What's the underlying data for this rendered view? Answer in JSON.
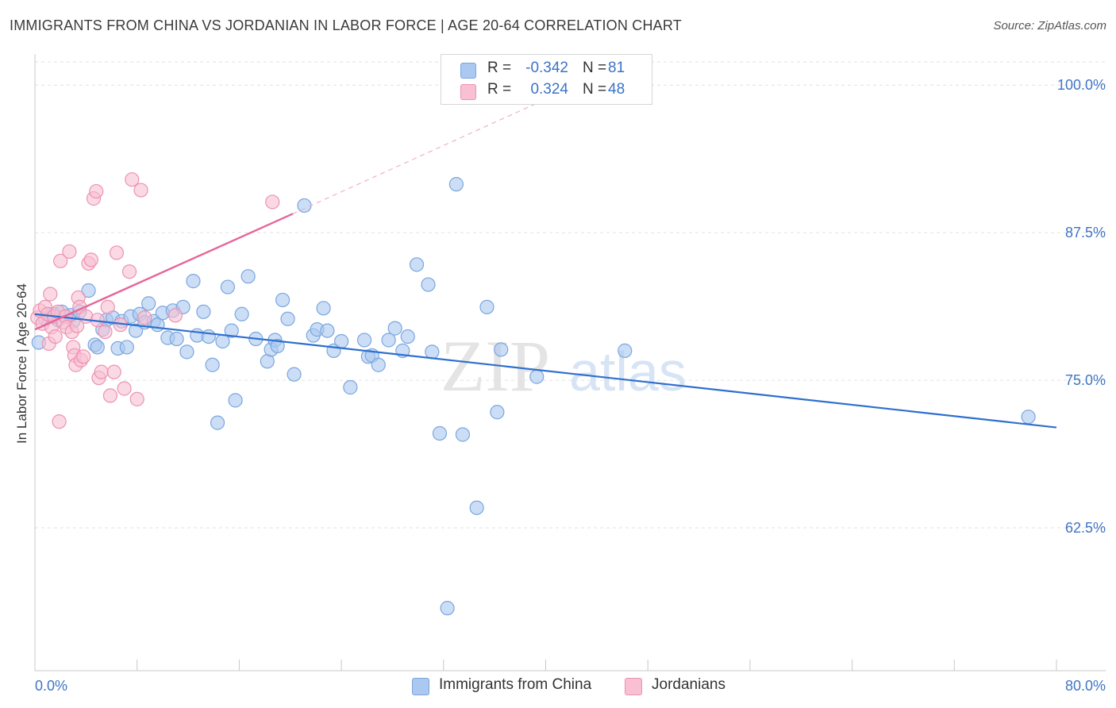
{
  "title": "IMMIGRANTS FROM CHINA VS JORDANIAN IN LABOR FORCE | AGE 20-64 CORRELATION CHART",
  "source": "Source: ZipAtlas.com",
  "watermark": {
    "zip": "ZIP",
    "atlas": "atlas"
  },
  "legend": {
    "rows": [
      {
        "r_label": "R =",
        "r_value": "-0.342",
        "n_label": "N =",
        "n_value": "81",
        "color": "#aac8f0",
        "border": "#7aa6de"
      },
      {
        "r_label": "R =",
        "r_value": "0.324",
        "n_label": "N =",
        "n_value": "48",
        "color": "#f8c0d2",
        "border": "#ec92b0"
      }
    ]
  },
  "bottom_legend": [
    {
      "label": "Immigrants from China",
      "color": "#aac8f0",
      "border": "#7aa6de"
    },
    {
      "label": "Jordanians",
      "color": "#f8c0d2",
      "border": "#ec92b0"
    }
  ],
  "chart_data": {
    "type": "scatter",
    "title": "IMMIGRANTS FROM CHINA VS JORDANIAN IN LABOR FORCE | AGE 20-64 CORRELATION CHART",
    "xlabel": "",
    "ylabel": "In Labor Force | Age 20-64",
    "xlim": [
      0,
      80
    ],
    "ylim": [
      50.4,
      102.5
    ],
    "x_tick_labels": [
      "0.0%",
      "80.0%"
    ],
    "y_ticks": [
      62.5,
      75.0,
      87.5,
      100.0
    ],
    "y_tick_labels": [
      "62.5%",
      "75.0%",
      "87.5%",
      "100.0%"
    ],
    "grid": true,
    "legend_position": "top-center",
    "series": [
      {
        "name": "Immigrants from China",
        "color": "#7aa6de",
        "fill": "#aac8f0",
        "trend": {
          "x": [
            0,
            80
          ],
          "y": [
            80.6,
            71.0
          ],
          "color": "#2f6fcf",
          "dashed_extension": false
        },
        "points": [
          [
            0.3,
            78.2
          ],
          [
            0.8,
            80.2
          ],
          [
            1.2,
            80.5
          ],
          [
            1.5,
            80.6
          ],
          [
            1.8,
            80.1
          ],
          [
            2.1,
            80.8
          ],
          [
            2.8,
            80.5
          ],
          [
            3.0,
            80.0
          ],
          [
            3.5,
            80.8
          ],
          [
            4.2,
            82.6
          ],
          [
            4.7,
            78.0
          ],
          [
            4.9,
            77.8
          ],
          [
            5.3,
            79.3
          ],
          [
            5.6,
            80.1
          ],
          [
            6.1,
            80.3
          ],
          [
            6.5,
            77.7
          ],
          [
            6.8,
            80.0
          ],
          [
            7.2,
            77.8
          ],
          [
            7.5,
            80.4
          ],
          [
            7.9,
            79.2
          ],
          [
            8.2,
            80.6
          ],
          [
            8.6,
            79.9
          ],
          [
            8.9,
            81.5
          ],
          [
            9.3,
            80.0
          ],
          [
            9.6,
            79.7
          ],
          [
            10.0,
            80.7
          ],
          [
            10.4,
            78.6
          ],
          [
            10.8,
            80.9
          ],
          [
            11.1,
            78.5
          ],
          [
            11.6,
            81.2
          ],
          [
            11.9,
            77.4
          ],
          [
            12.4,
            83.4
          ],
          [
            12.7,
            78.8
          ],
          [
            13.2,
            80.8
          ],
          [
            13.6,
            78.7
          ],
          [
            13.9,
            76.3
          ],
          [
            14.7,
            78.3
          ],
          [
            15.1,
            82.9
          ],
          [
            15.4,
            79.2
          ],
          [
            15.7,
            73.3
          ],
          [
            16.2,
            80.6
          ],
          [
            16.7,
            83.8
          ],
          [
            17.3,
            78.5
          ],
          [
            18.2,
            76.6
          ],
          [
            18.5,
            77.6
          ],
          [
            18.8,
            78.4
          ],
          [
            19.0,
            77.9
          ],
          [
            19.4,
            81.8
          ],
          [
            19.8,
            80.2
          ],
          [
            20.3,
            75.5
          ],
          [
            21.1,
            89.8
          ],
          [
            21.8,
            78.8
          ],
          [
            22.1,
            79.3
          ],
          [
            22.6,
            81.1
          ],
          [
            22.9,
            79.2
          ],
          [
            23.4,
            77.5
          ],
          [
            24.0,
            78.3
          ],
          [
            24.7,
            74.4
          ],
          [
            25.8,
            78.4
          ],
          [
            26.1,
            77.0
          ],
          [
            26.4,
            77.1
          ],
          [
            26.9,
            76.3
          ],
          [
            27.7,
            78.4
          ],
          [
            28.2,
            79.4
          ],
          [
            28.8,
            77.5
          ],
          [
            29.2,
            78.7
          ],
          [
            29.9,
            84.8
          ],
          [
            30.8,
            83.1
          ],
          [
            31.1,
            77.4
          ],
          [
            31.7,
            70.5
          ],
          [
            32.3,
            55.7
          ],
          [
            33.0,
            91.6
          ],
          [
            33.5,
            70.4
          ],
          [
            34.6,
            64.2
          ],
          [
            35.4,
            81.2
          ],
          [
            36.2,
            72.3
          ],
          [
            36.5,
            77.6
          ],
          [
            39.3,
            75.3
          ],
          [
            46.2,
            77.5
          ],
          [
            77.8,
            71.9
          ],
          [
            14.3,
            71.4
          ]
        ]
      },
      {
        "name": "Jordanians",
        "color": "#ec92b0",
        "fill": "#f8c0d2",
        "trend": {
          "x": [
            0,
            20.2
          ],
          "y": [
            79.3,
            89.1
          ],
          "color": "#e6669a",
          "dashed_to": [
            40,
            98.8
          ]
        },
        "points": [
          [
            0.2,
            80.3
          ],
          [
            0.4,
            80.9
          ],
          [
            0.6,
            79.8
          ],
          [
            0.8,
            81.2
          ],
          [
            1.0,
            80.6
          ],
          [
            1.1,
            78.1
          ],
          [
            1.2,
            82.3
          ],
          [
            1.3,
            79.5
          ],
          [
            1.5,
            80.4
          ],
          [
            1.6,
            78.7
          ],
          [
            1.8,
            80.8
          ],
          [
            1.9,
            71.5
          ],
          [
            2.0,
            85.1
          ],
          [
            2.2,
            79.9
          ],
          [
            2.4,
            80.4
          ],
          [
            2.5,
            79.5
          ],
          [
            2.7,
            85.9
          ],
          [
            2.9,
            79.1
          ],
          [
            3.0,
            77.8
          ],
          [
            3.1,
            77.1
          ],
          [
            3.2,
            76.3
          ],
          [
            3.3,
            79.6
          ],
          [
            3.4,
            82.0
          ],
          [
            3.5,
            81.2
          ],
          [
            3.6,
            76.7
          ],
          [
            3.8,
            77.0
          ],
          [
            4.0,
            80.4
          ],
          [
            4.2,
            84.9
          ],
          [
            4.4,
            85.2
          ],
          [
            4.6,
            90.4
          ],
          [
            4.8,
            91.0
          ],
          [
            4.9,
            80.1
          ],
          [
            5.0,
            75.2
          ],
          [
            5.2,
            75.7
          ],
          [
            5.5,
            79.1
          ],
          [
            5.7,
            81.2
          ],
          [
            5.9,
            73.7
          ],
          [
            6.2,
            75.7
          ],
          [
            6.4,
            85.8
          ],
          [
            6.7,
            79.7
          ],
          [
            7.0,
            74.3
          ],
          [
            7.4,
            84.2
          ],
          [
            7.6,
            92.0
          ],
          [
            8.0,
            73.4
          ],
          [
            8.3,
            91.1
          ],
          [
            8.6,
            80.3
          ],
          [
            11.0,
            80.5
          ],
          [
            18.6,
            90.1
          ]
        ]
      }
    ]
  }
}
